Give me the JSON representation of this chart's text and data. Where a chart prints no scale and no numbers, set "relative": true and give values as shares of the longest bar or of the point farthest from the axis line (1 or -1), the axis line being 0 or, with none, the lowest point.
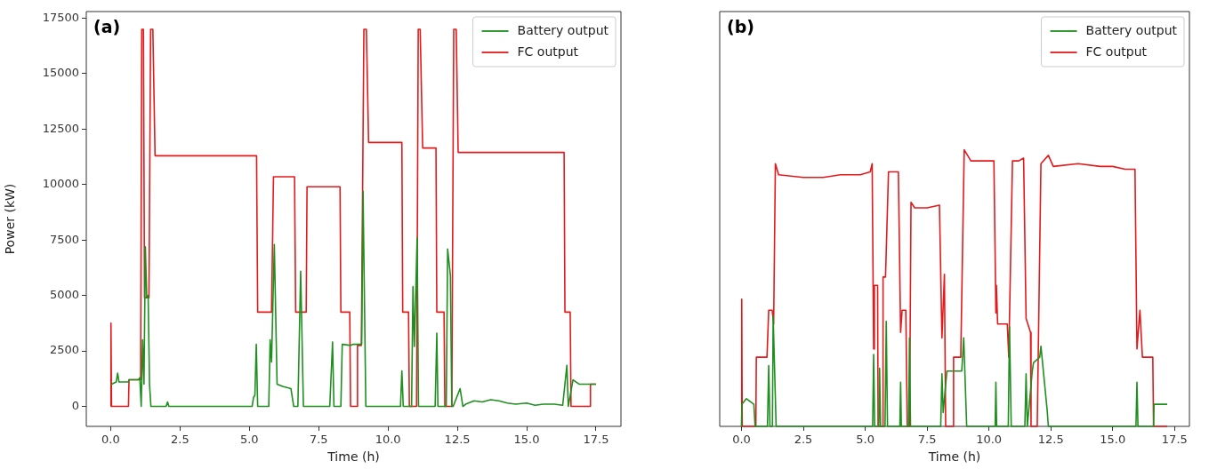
{
  "chart_data": [
    {
      "type": "line",
      "title": "(a)",
      "xlabel": "Time (h)",
      "ylabel": "Power (kW)",
      "xlim": [
        -0.88,
        18.4
      ],
      "xticks": [
        {
          "value": 0,
          "label": "0.0"
        },
        {
          "value": 2.5,
          "label": "2.5"
        },
        {
          "value": 5,
          "label": "5.0"
        },
        {
          "value": 7.5,
          "label": "7.5"
        },
        {
          "value": 10,
          "label": "10.0"
        },
        {
          "value": 12.5,
          "label": "12.5"
        },
        {
          "value": 15,
          "label": "15.0"
        },
        {
          "value": 17.5,
          "label": "17.5"
        }
      ],
      "ylim": [
        -900,
        17800
      ],
      "yticks": [
        0,
        2500,
        5000,
        7500,
        10000,
        12500,
        15000,
        17500
      ],
      "grid": false,
      "legend": "top right",
      "series": [
        {
          "name": "Battery output",
          "color": "#1f8f1f",
          "x": [
            0,
            0.03,
            0.2,
            0.25,
            0.3,
            0.64,
            0.66,
            1.0,
            1.05,
            1.1,
            1.15,
            1.2,
            1.25,
            1.3,
            1.35,
            1.4,
            1.45,
            2.0,
            2.05,
            2.1,
            5.1,
            5.15,
            5.2,
            5.25,
            5.3,
            5.7,
            5.75,
            5.8,
            5.9,
            6.0,
            6.2,
            6.5,
            6.6,
            6.75,
            6.85,
            6.95,
            7.9,
            8.0,
            8.05,
            8.3,
            8.35,
            8.65,
            8.75,
            9.05,
            9.1,
            9.2,
            9.3,
            10.45,
            10.5,
            10.55,
            10.85,
            10.9,
            10.95,
            11.05,
            11.1,
            11.15,
            11.7,
            11.76,
            11.8,
            12.1,
            12.15,
            12.25,
            12.3,
            12.35,
            12.6,
            12.7,
            12.8,
            13.1,
            13.4,
            13.7,
            14.0,
            14.3,
            14.6,
            15.0,
            15.3,
            15.6,
            16.0,
            16.3,
            16.45,
            16.5,
            16.67,
            16.9,
            17.5
          ],
          "values": [
            1000,
            1000,
            1100,
            1500,
            1100,
            1100,
            1200,
            1200,
            1300,
            0,
            3000,
            1000,
            7200,
            4900,
            5000,
            1000,
            0,
            0,
            200,
            0,
            0,
            400,
            500,
            2800,
            0,
            0,
            3000,
            2000,
            7300,
            1000,
            900,
            800,
            0,
            0,
            6100,
            0,
            0,
            2900,
            0,
            0,
            2800,
            2750,
            2800,
            2800,
            9700,
            0,
            0,
            0,
            1600,
            0,
            0,
            5400,
            2700,
            7600,
            0,
            0,
            0,
            3300,
            0,
            0,
            7100,
            5900,
            0,
            0,
            800,
            0,
            100,
            250,
            200,
            300,
            250,
            150,
            100,
            150,
            50,
            100,
            100,
            50,
            1850,
            0,
            1200,
            1000,
            1000
          ]
        },
        {
          "name": "FC output",
          "color": "#e31a1c",
          "x": [
            0,
            0.01,
            0.03,
            0.64,
            0.66,
            1.08,
            1.12,
            1.18,
            1.22,
            1.38,
            1.44,
            1.52,
            1.6,
            5.26,
            5.3,
            5.8,
            5.87,
            6.63,
            6.67,
            7.05,
            7.08,
            8.27,
            8.3,
            8.62,
            8.65,
            8.88,
            8.9,
            9.04,
            9.13,
            9.22,
            9.3,
            10.5,
            10.53,
            10.74,
            10.77,
            11.03,
            11.09,
            11.16,
            11.25,
            11.73,
            11.76,
            12.02,
            12.05,
            12.3,
            12.37,
            12.46,
            12.53,
            16.35,
            16.38,
            16.57,
            16.6,
            17.28,
            17.3,
            17.5
          ],
          "values": [
            0,
            3750,
            0,
            0,
            1200,
            1200,
            17000,
            17000,
            4900,
            4900,
            17000,
            17000,
            11300,
            11300,
            4250,
            4250,
            10350,
            10350,
            4250,
            4250,
            9900,
            9900,
            4250,
            4250,
            0,
            0,
            2750,
            2750,
            17000,
            17000,
            11900,
            11900,
            4250,
            4250,
            0,
            0,
            17000,
            17000,
            11650,
            11650,
            4250,
            4250,
            0,
            0,
            17000,
            17000,
            11450,
            11450,
            4250,
            4250,
            0,
            0,
            1000,
            1000
          ]
        }
      ]
    },
    {
      "type": "line",
      "title": "(b)",
      "xlabel": "Time (h)",
      "relative": true,
      "tick_labels": "x",
      "xlim": [
        -0.88,
        18.1
      ],
      "xticks": [
        {
          "value": 0,
          "label": "0.0"
        },
        {
          "value": 2.5,
          "label": "2.5"
        },
        {
          "value": 5,
          "label": "5.0"
        },
        {
          "value": 7.5,
          "label": "7.5"
        },
        {
          "value": 10,
          "label": "10.0"
        },
        {
          "value": 12.5,
          "label": "12.5"
        },
        {
          "value": 15,
          "label": "15.0"
        },
        {
          "value": 17.5,
          "label": "17.5"
        }
      ],
      "grid": false,
      "legend": "top right",
      "series": [
        {
          "name": "Battery output",
          "color": "#1f8f1f",
          "x": [
            0,
            0.02,
            0.2,
            0.5,
            0.52,
            0.55,
            1.05,
            1.1,
            1.15,
            1.25,
            1.28,
            1.4,
            5.3,
            5.34,
            5.38,
            5.55,
            5.58,
            5.62,
            5.8,
            5.85,
            5.9,
            6.4,
            6.43,
            6.46,
            6.75,
            6.79,
            6.83,
            8.05,
            8.1,
            8.15,
            8.3,
            8.9,
            8.98,
            9.1,
            10.25,
            10.28,
            10.31,
            10.78,
            10.83,
            10.9,
            11.45,
            11.5,
            11.55,
            11.75,
            11.8,
            12.05,
            12.1,
            12.35,
            12.4,
            15.94,
            15.98,
            16.02,
            16.65,
            16.67,
            17.2
          ],
          "values": [
            0,
            0.08,
            0.1,
            0.08,
            0.08,
            0,
            0,
            0.22,
            0,
            0,
            0.4,
            0,
            0,
            0.26,
            0,
            0,
            0.21,
            0,
            0,
            0.38,
            0,
            0,
            0.16,
            0,
            0,
            0.32,
            0,
            0,
            0.19,
            0.05,
            0.2,
            0.2,
            0.32,
            0,
            0,
            0.16,
            0,
            0,
            0.36,
            0,
            0,
            0.19,
            0,
            0.2,
            0.23,
            0.25,
            0.29,
            0.06,
            0,
            0,
            0.16,
            0,
            0,
            0.08,
            0.08
          ]
        },
        {
          "name": "FC output",
          "color": "#e31a1c",
          "x": [
            0,
            0.01,
            0.03,
            0.58,
            0.6,
            1.03,
            1.1,
            1.24,
            1.3,
            1.37,
            1.5,
            2.5,
            3.3,
            4.0,
            4.8,
            5.2,
            5.28,
            5.34,
            5.37,
            5.5,
            5.52,
            5.7,
            5.72,
            5.82,
            5.94,
            6.34,
            6.43,
            6.49,
            6.64,
            6.7,
            6.79,
            6.85,
            7.0,
            7.5,
            8.0,
            8.1,
            8.2,
            8.25,
            8.55,
            8.57,
            8.86,
            9.0,
            9.27,
            9.7,
            10.2,
            10.28,
            10.3,
            10.35,
            10.74,
            10.8,
            10.95,
            11.2,
            11.4,
            11.5,
            11.68,
            11.7,
            11.95,
            12.1,
            12.4,
            12.6,
            13.6,
            14.5,
            15.0,
            15.5,
            15.9,
            15.98,
            16.1,
            16.2,
            16.62,
            16.65,
            17.2
          ],
          "values": [
            0,
            0.46,
            0,
            0,
            0.25,
            0.25,
            0.42,
            0.42,
            0.37,
            0.95,
            0.91,
            0.9,
            0.9,
            0.91,
            0.91,
            0.92,
            0.95,
            0.28,
            0.51,
            0.51,
            0,
            0,
            0.54,
            0.54,
            0.92,
            0.92,
            0.34,
            0.42,
            0.42,
            0,
            0,
            0.81,
            0.79,
            0.79,
            0.8,
            0.32,
            0.55,
            0,
            0,
            0.25,
            0.25,
            1,
            0.96,
            0.96,
            0.96,
            0.41,
            0.51,
            0.37,
            0.37,
            0.25,
            0.96,
            0.96,
            0.97,
            0.39,
            0.34,
            0,
            0,
            0.95,
            0.98,
            0.94,
            0.95,
            0.94,
            0.94,
            0.93,
            0.93,
            0.28,
            0.42,
            0.25,
            0.25,
            0,
            0
          ]
        }
      ]
    }
  ]
}
